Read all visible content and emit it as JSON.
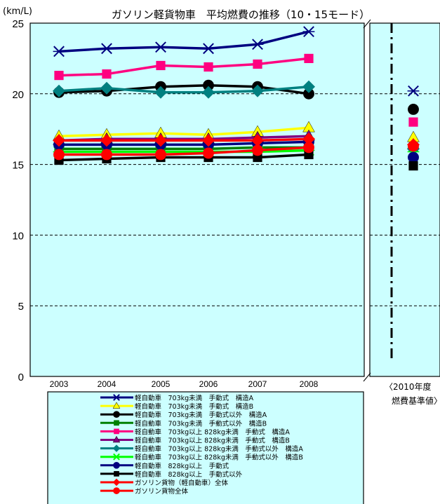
{
  "chart_data": {
    "type": "line",
    "title": "ガソリン軽貨物車　平均燃費の推移（10・15モード）",
    "ylabel": "(km/L)",
    "ylim": [
      0,
      25
    ],
    "yticks": [
      0,
      5,
      10,
      15,
      20,
      25
    ],
    "categories": [
      "2003",
      "2004",
      "2005",
      "2006",
      "2007",
      "2008"
    ],
    "target_label_line1": "〈2010年度",
    "target_label_line2": "燃費基準値〉",
    "grid": true,
    "legend": "bottom",
    "series": [
      {
        "name": "軽自動車　703kg未満　手動式　構造A",
        "color": "#000080",
        "marker": "x",
        "values": [
          23.0,
          23.2,
          23.3,
          23.2,
          23.5,
          24.4
        ],
        "target": 20.2
      },
      {
        "name": "軽自動車　703kg未満　手動式　構造B",
        "color": "#ffff00",
        "marker": "triangle",
        "values": [
          17.0,
          17.1,
          17.2,
          17.1,
          17.3,
          17.6
        ],
        "target": 16.9
      },
      {
        "name": "軽自動車　703kg未満　手動式以外　構造A",
        "color": "#000000",
        "marker": "circle",
        "values": [
          20.1,
          20.2,
          20.5,
          20.6,
          20.5,
          20.0
        ],
        "target": 18.9
      },
      {
        "name": "軽自動車　703kg未満　手動式以外　構造B",
        "color": "#008000",
        "marker": "square",
        "values": [
          16.1,
          16.1,
          16.1,
          16.1,
          16.2,
          16.2
        ],
        "target": 16.2
      },
      {
        "name": "軽自動車　703kg以上 828kg未満　手動式　構造A",
        "color": "#ff0080",
        "marker": "square",
        "values": [
          21.3,
          21.4,
          22.0,
          21.9,
          22.1,
          22.5
        ],
        "target": 18.0
      },
      {
        "name": "軽自動車　703kg以上 828kg未満　手動式　構造B",
        "color": "#800080",
        "marker": "triangle",
        "values": [
          16.7,
          16.8,
          16.8,
          16.8,
          16.9,
          17.0
        ],
        "target": 16.4
      },
      {
        "name": "軽自動車　703kg以上 828kg未満　手動式以外　構造A",
        "color": "#008080",
        "marker": "diamond",
        "values": [
          20.2,
          20.4,
          20.1,
          20.1,
          20.2,
          20.5
        ],
        "target": 16.1
      },
      {
        "name": "軽自動車　703kg以上 828kg未満　手動式以外　構造B",
        "color": "#00ff00",
        "marker": "x",
        "values": [
          15.9,
          15.9,
          15.9,
          15.9,
          15.9,
          16.0
        ],
        "target": 15.9
      },
      {
        "name": "軽自動車　828kg以上　手動式",
        "color": "#000080",
        "marker": "circle",
        "values": [
          16.4,
          16.4,
          16.4,
          16.4,
          16.5,
          16.6
        ],
        "target": 15.5
      },
      {
        "name": "軽自動車　828kg以上　手動式以外",
        "color": "#000000",
        "marker": "square",
        "values": [
          15.3,
          15.4,
          15.5,
          15.5,
          15.5,
          15.7
        ],
        "target": 14.9
      },
      {
        "name": "ガソリン貨物（軽自動車）全体",
        "color": "#ff0000",
        "marker": "diamond",
        "values": [
          16.7,
          16.7,
          16.7,
          16.7,
          16.7,
          16.8
        ],
        "target": 16.4
      },
      {
        "name": "ガソリン貨物全体",
        "color": "#ff0000",
        "marker": "circle",
        "values": [
          15.7,
          15.7,
          15.7,
          15.8,
          16.0,
          16.2
        ],
        "target": 16.3
      }
    ]
  }
}
